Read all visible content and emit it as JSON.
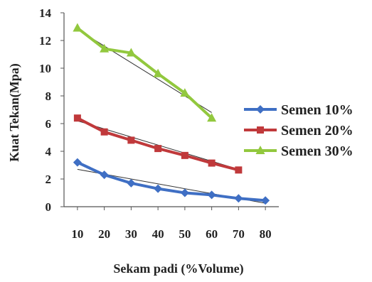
{
  "chart_data": {
    "type": "line",
    "xlabel": "Sekam padi (%Volume)",
    "ylabel": "Kuat Tekan(Mpa)",
    "xticks": [
      10,
      20,
      30,
      40,
      50,
      60,
      70,
      80
    ],
    "yticks": [
      0,
      2,
      4,
      6,
      8,
      10,
      12,
      14
    ],
    "xlim": [
      5,
      85
    ],
    "ylim": [
      0,
      14
    ],
    "grid": false,
    "legend_position": "right",
    "series": [
      {
        "name": "Semen 10%",
        "color": "#3F6FC4",
        "marker": "diamond",
        "x": [
          10,
          20,
          30,
          40,
          50,
          60,
          70,
          80
        ],
        "y": [
          3.2,
          2.3,
          1.7,
          1.3,
          1.0,
          0.85,
          0.6,
          0.45
        ],
        "trendline": [
          [
            10,
            2.7
          ],
          [
            80,
            0.25
          ]
        ]
      },
      {
        "name": "Semen 20%",
        "color": "#C0393B",
        "marker": "square",
        "x": [
          10,
          20,
          30,
          40,
          50,
          60,
          70
        ],
        "y": [
          6.4,
          5.4,
          4.8,
          4.2,
          3.7,
          3.15,
          2.65
        ],
        "trendline": [
          [
            10,
            6.2
          ],
          [
            70,
            2.7
          ]
        ]
      },
      {
        "name": "Semen 30%",
        "color": "#92C83E",
        "marker": "triangle",
        "x": [
          10,
          20,
          30,
          40,
          50,
          60
        ],
        "y": [
          12.9,
          11.4,
          11.1,
          9.6,
          8.2,
          6.4
        ],
        "trendline": [
          [
            10,
            12.8
          ],
          [
            60,
            6.8
          ]
        ]
      }
    ]
  }
}
